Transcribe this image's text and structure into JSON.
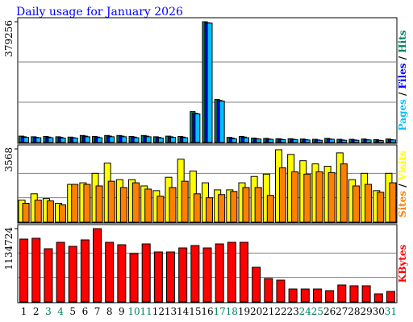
{
  "chart_data": [
    {
      "type": "bar",
      "title": "Daily usage for January 2026",
      "legend_separator": " / ",
      "ylim": [
        0,
        379256
      ],
      "yticks": [
        379256
      ],
      "series": [
        {
          "name": "Hits",
          "color": "#00805c",
          "values": [
            20000,
            18000,
            19000,
            18000,
            17000,
            22000,
            19000,
            22000,
            22000,
            19000,
            22000,
            18000,
            20000,
            19000,
            97000,
            379256,
            135000,
            16000,
            19000,
            14000,
            13000,
            12000,
            12000,
            11000,
            10000,
            13000,
            10000,
            10000,
            11000,
            9000,
            11000
          ]
        },
        {
          "name": "Files",
          "color": "#0000ff",
          "values": [
            18000,
            16000,
            17000,
            16000,
            15000,
            20000,
            17000,
            20000,
            20000,
            17000,
            20000,
            16000,
            18000,
            17000,
            92000,
            376000,
            132000,
            14000,
            17000,
            12000,
            11000,
            10000,
            10000,
            9000,
            8000,
            11000,
            8000,
            8000,
            9000,
            7000,
            9000
          ]
        },
        {
          "name": "Pages",
          "color": "#00c0ff",
          "values": [
            16000,
            15000,
            15000,
            14000,
            14000,
            18000,
            15000,
            18000,
            18000,
            15000,
            18000,
            14000,
            16000,
            15000,
            90000,
            375000,
            130000,
            12000,
            15000,
            11000,
            10000,
            9000,
            9000,
            8000,
            7000,
            10000,
            7000,
            7000,
            8000,
            6000,
            8000
          ]
        }
      ]
    },
    {
      "type": "bar",
      "legend_separator": " / ",
      "ylim": [
        0,
        3568
      ],
      "yticks": [
        3568
      ],
      "series": [
        {
          "name": "Visits",
          "color": "#ffff00",
          "values": [
            1074,
            1381,
            1151,
            921,
            1842,
            1918,
            2379,
            2878,
            2072,
            2072,
            1765,
            1535,
            2187,
            3069,
            2494,
            1918,
            1573,
            1573,
            1918,
            2225,
            2341,
            3530,
            3300,
            2993,
            2839,
            2724,
            3376,
            2072,
            2379,
            1535,
            2379
          ]
        },
        {
          "name": "Sites",
          "color": "#ff8000",
          "values": [
            921,
            1074,
            1036,
            844,
            1842,
            1842,
            1765,
            1995,
            1688,
            1918,
            1611,
            1266,
            1688,
            1995,
            1381,
            1189,
            1343,
            1496,
            1688,
            1688,
            1305,
            2647,
            2456,
            2341,
            2456,
            2417,
            2839,
            1765,
            1842,
            1458,
            1918
          ]
        }
      ]
    },
    {
      "type": "bar",
      "ylim": [
        0,
        1134724
      ],
      "yticks": [
        1134724
      ],
      "categories": [
        "1",
        "2",
        "3",
        "4",
        "5",
        "6",
        "7",
        "8",
        "9",
        "10",
        "11",
        "12",
        "13",
        "14",
        "15",
        "16",
        "17",
        "18",
        "19",
        "20",
        "21",
        "22",
        "23",
        "24",
        "25",
        "26",
        "27",
        "28",
        "29",
        "30",
        "31"
      ],
      "category_colors": [
        "#000000",
        "#000000",
        "#00805c",
        "#00805c",
        "#000000",
        "#000000",
        "#000000",
        "#000000",
        "#000000",
        "#00805c",
        "#00805c",
        "#000000",
        "#000000",
        "#000000",
        "#000000",
        "#000000",
        "#00805c",
        "#00805c",
        "#000000",
        "#000000",
        "#000000",
        "#000000",
        "#000000",
        "#00805c",
        "#00805c",
        "#000000",
        "#000000",
        "#000000",
        "#000000",
        "#000000",
        "#00805c"
      ],
      "series": [
        {
          "name": "KBytes",
          "color": "#ff0000",
          "values": [
            972660,
            985130,
            823020,
            922780,
            860430,
            960190,
            1134724,
            922780,
            885370,
            748200,
            897840,
            773140,
            773140,
            835490,
            872900,
            835490,
            897840,
            922780,
            922780,
            536210,
            361630,
            336690,
            199520,
            199520,
            199520,
            174580,
            261870,
            249400,
            249400,
            124700,
            162110
          ]
        }
      ]
    }
  ]
}
